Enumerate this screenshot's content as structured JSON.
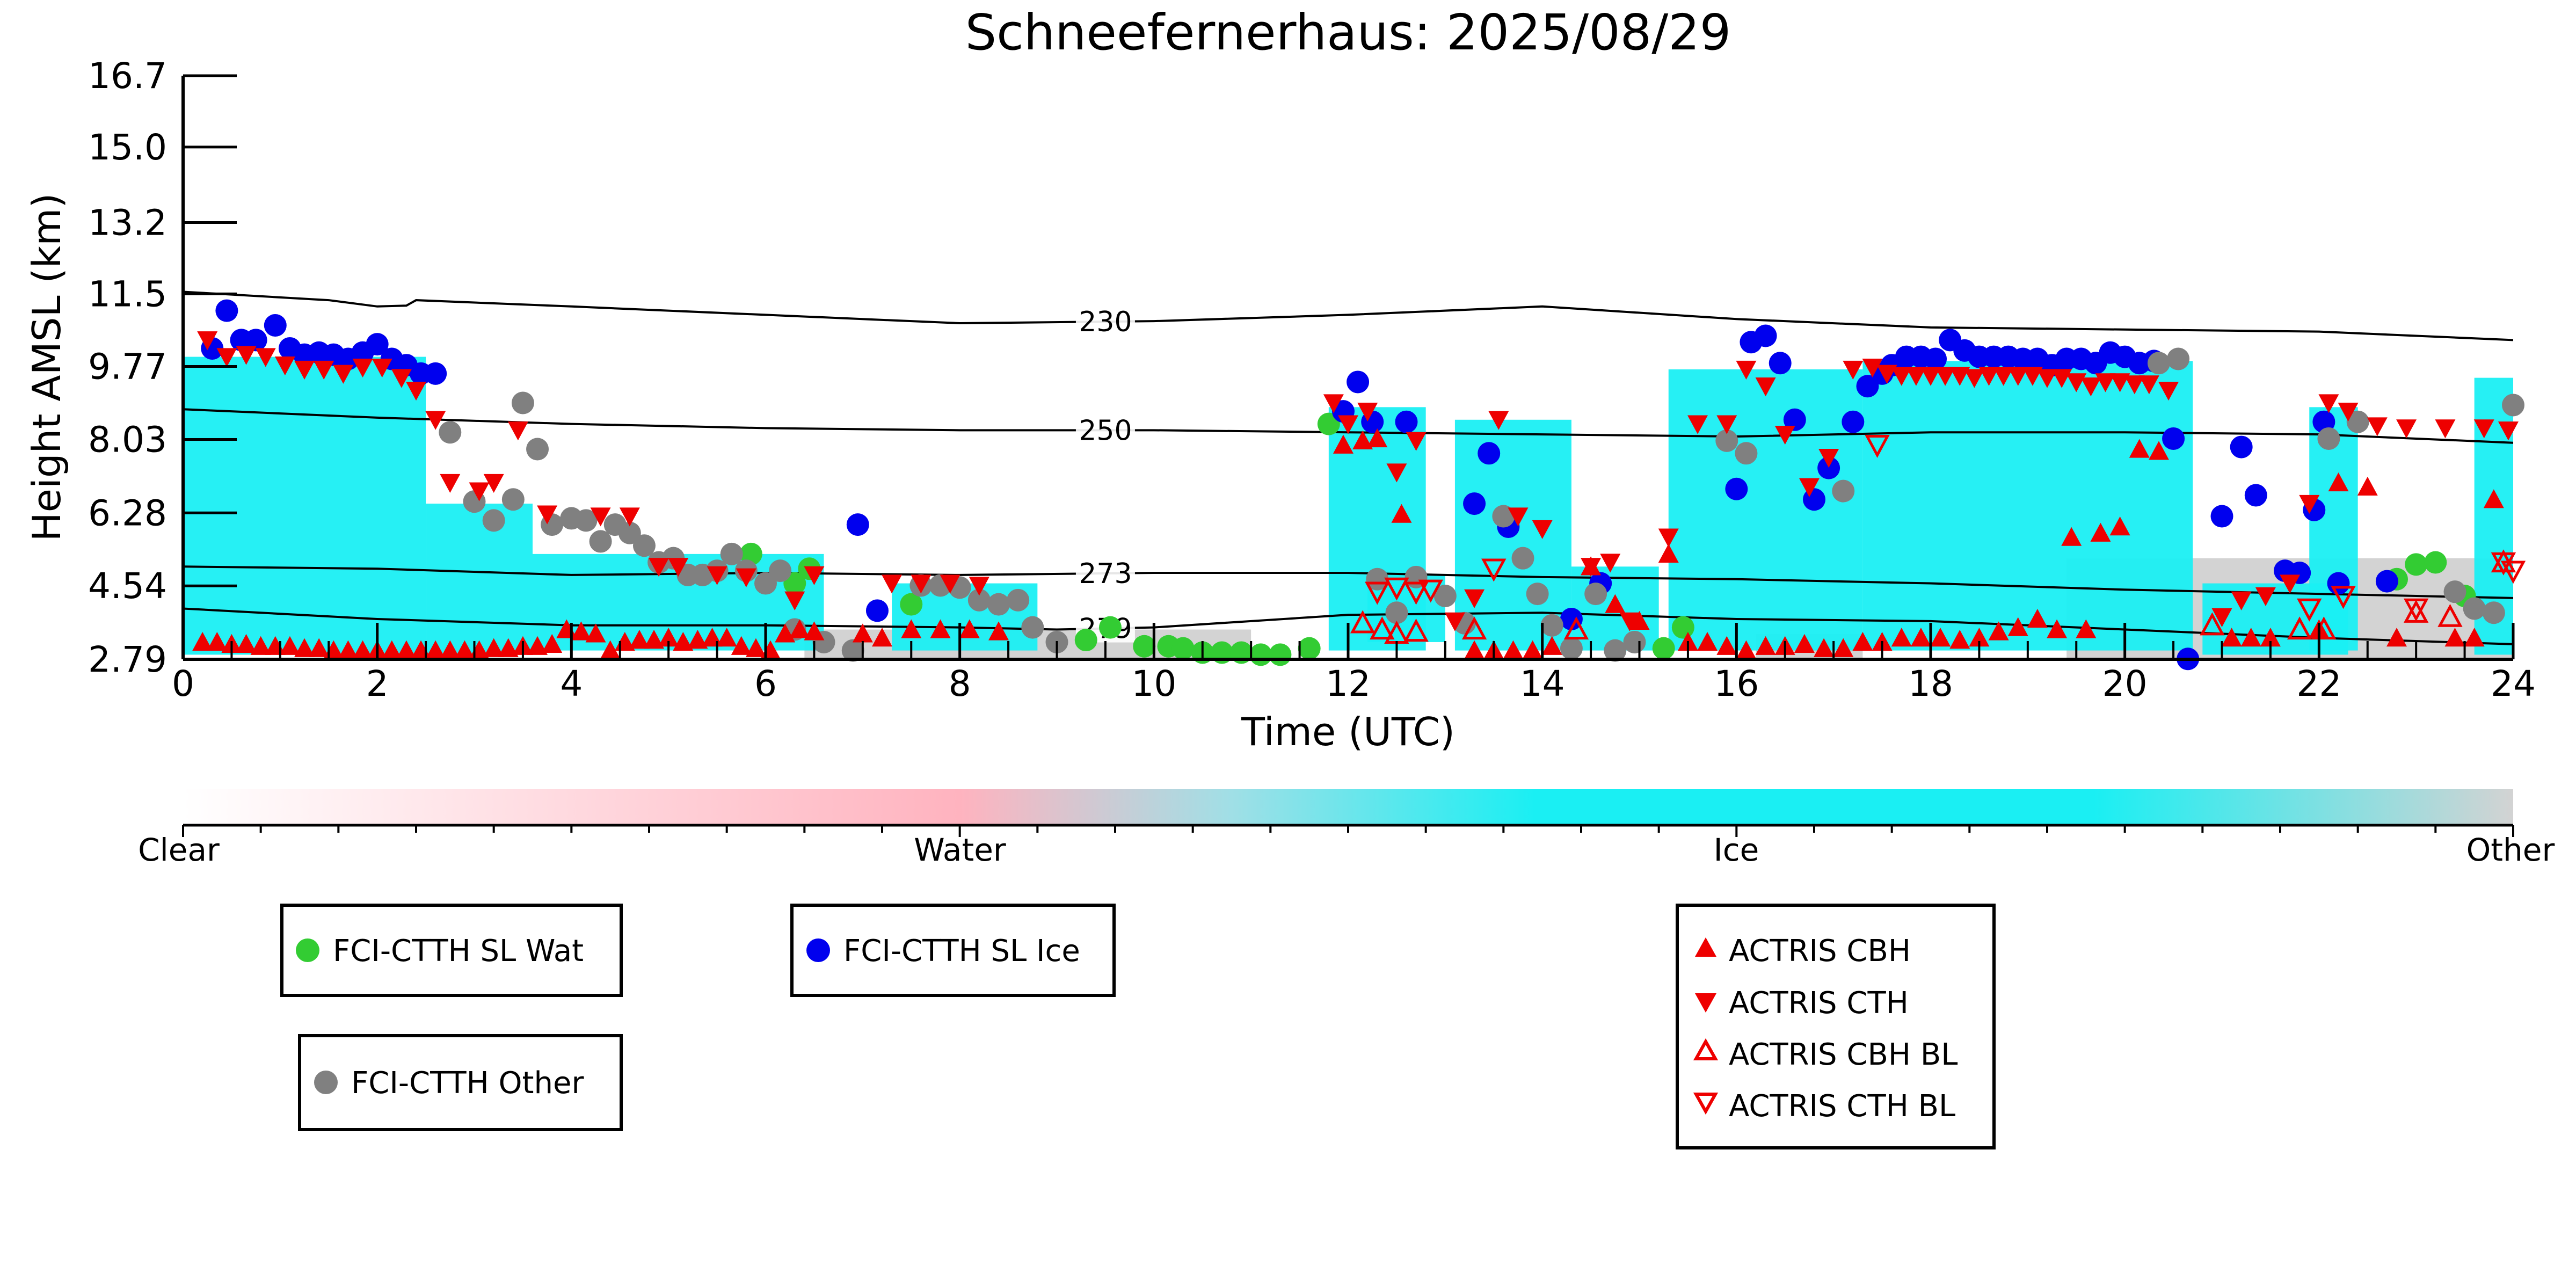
{
  "chart_data": {
    "type": "scatter",
    "title": "Schneefernerhaus: 2025/08/29",
    "xlabel": "Time (UTC)",
    "ylabel": "Height AMSL (km)",
    "xlim": [
      0,
      24
    ],
    "ylim": [
      2.79,
      16.7
    ],
    "x_ticks": [
      "0",
      "2",
      "4",
      "6",
      "8",
      "10",
      "12",
      "14",
      "16",
      "18",
      "20",
      "22",
      "24"
    ],
    "y_ticks": [
      "2.79",
      "4.54",
      "6.28",
      "8.03",
      "9.77",
      "11.5",
      "13.2",
      "15.0",
      "16.7"
    ],
    "background_field": {
      "description_classes": [
        "Clear",
        "Water",
        "Ice",
        "Other"
      ],
      "ice_segments": [
        {
          "x0": 0.0,
          "x1": 2.5,
          "base": 2.9,
          "top": 10.0
        },
        {
          "x0": 2.5,
          "x1": 3.6,
          "base": 2.9,
          "top": 6.5
        },
        {
          "x0": 3.6,
          "x1": 6.6,
          "base": 3.0,
          "top": 5.3
        },
        {
          "x0": 7.3,
          "x1": 8.8,
          "base": 3.0,
          "top": 4.6
        },
        {
          "x0": 11.8,
          "x1": 12.8,
          "base": 3.0,
          "top": 8.8
        },
        {
          "x0": 12.2,
          "x1": 13.0,
          "base": 3.2,
          "top": 4.8
        },
        {
          "x0": 13.1,
          "x1": 14.3,
          "base": 3.0,
          "top": 8.5
        },
        {
          "x0": 14.3,
          "x1": 15.2,
          "base": 3.0,
          "top": 5.0
        },
        {
          "x0": 15.3,
          "x1": 17.3,
          "base": 3.0,
          "top": 9.7
        },
        {
          "x0": 17.3,
          "x1": 20.7,
          "base": 3.0,
          "top": 9.9
        },
        {
          "x0": 20.8,
          "x1": 22.3,
          "base": 2.9,
          "top": 4.6
        },
        {
          "x0": 21.9,
          "x1": 22.4,
          "base": 3.0,
          "top": 8.8
        },
        {
          "x0": 23.6,
          "x1": 24.0,
          "base": 2.9,
          "top": 9.5
        }
      ],
      "other_segments": [
        {
          "x0": 6.4,
          "x1": 11.0,
          "base": 2.79,
          "top": 3.5
        },
        {
          "x0": 19.4,
          "x1": 24.0,
          "base": 2.79,
          "top": 5.2
        },
        {
          "x0": 16.2,
          "x1": 17.3,
          "base": 2.79,
          "top": 3.4
        }
      ]
    },
    "contours": [
      {
        "label": "230",
        "label_x": 9.5,
        "x": [
          0,
          1.5,
          2.0,
          2.3,
          2.4,
          4,
          6,
          8,
          10,
          12,
          14,
          16,
          18,
          20,
          22,
          24
        ],
        "y": [
          11.55,
          11.35,
          11.2,
          11.22,
          11.35,
          11.2,
          11.0,
          10.8,
          10.85,
          11.0,
          11.2,
          10.9,
          10.7,
          10.65,
          10.6,
          10.4
        ]
      },
      {
        "label": "250",
        "label_x": 9.5,
        "x": [
          0,
          2,
          4,
          6,
          8,
          10,
          12,
          14,
          16,
          18,
          20,
          22,
          24
        ],
        "y": [
          8.75,
          8.55,
          8.4,
          8.3,
          8.25,
          8.25,
          8.2,
          8.15,
          8.1,
          8.2,
          8.2,
          8.15,
          7.95
        ]
      },
      {
        "label": "273",
        "label_x": 9.5,
        "x": [
          0,
          2,
          4,
          6,
          8,
          10,
          12,
          14,
          16,
          18,
          20,
          22,
          24
        ],
        "y": [
          5.0,
          4.95,
          4.8,
          4.85,
          4.8,
          4.85,
          4.85,
          4.75,
          4.7,
          4.6,
          4.45,
          4.35,
          4.25
        ]
      },
      {
        "label": "279",
        "label_x": 9.5,
        "x": [
          0,
          2,
          4,
          6,
          8,
          9,
          10,
          12,
          14,
          16,
          18,
          20,
          22,
          24
        ],
        "y": [
          4.0,
          3.75,
          3.6,
          3.6,
          3.55,
          3.5,
          3.55,
          3.85,
          3.9,
          3.75,
          3.7,
          3.5,
          3.3,
          3.15
        ]
      }
    ],
    "series": [
      {
        "name": "FCI-CTTH SL Wat",
        "color": "#33cc33",
        "marker": "circle",
        "x": [
          5.85,
          6.3,
          6.45,
          7.5,
          9.3,
          9.55,
          9.9,
          10.15,
          10.3,
          10.5,
          10.7,
          10.9,
          11.1,
          11.3,
          11.6,
          11.8,
          15.25,
          15.45,
          22.8,
          23.0,
          23.2,
          23.5
        ],
        "y": [
          5.3,
          4.6,
          4.95,
          4.1,
          3.25,
          3.55,
          3.1,
          3.1,
          3.05,
          2.95,
          2.95,
          2.95,
          2.9,
          2.9,
          3.05,
          8.4,
          3.05,
          3.55,
          4.7,
          5.05,
          5.1,
          4.3
        ]
      },
      {
        "name": "FCI-CTTH SL Ice",
        "color": "#0000ee",
        "marker": "circle",
        "x": [
          0.3,
          0.45,
          0.6,
          0.75,
          0.95,
          1.1,
          1.25,
          1.4,
          1.55,
          1.7,
          1.85,
          2.0,
          2.15,
          2.3,
          2.45,
          2.6,
          6.95,
          7.15,
          11.95,
          12.1,
          12.25,
          12.6,
          13.3,
          13.45,
          13.65,
          14.3,
          14.6,
          16.0,
          16.15,
          16.3,
          16.45,
          16.6,
          16.8,
          16.95,
          17.2,
          17.35,
          17.5,
          17.6,
          17.75,
          17.9,
          18.05,
          18.2,
          18.35,
          18.5,
          18.65,
          18.8,
          18.95,
          19.1,
          19.25,
          19.4,
          19.55,
          19.7,
          19.85,
          20.0,
          20.15,
          20.3,
          20.5,
          20.65,
          21.0,
          21.2,
          21.35,
          21.65,
          21.8,
          21.95,
          22.05,
          22.2,
          22.7
        ],
        "y": [
          10.2,
          11.1,
          10.4,
          10.4,
          10.75,
          10.2,
          10.05,
          10.1,
          10.05,
          9.95,
          10.1,
          10.3,
          9.95,
          9.8,
          9.6,
          9.6,
          6.0,
          3.95,
          8.7,
          9.4,
          8.45,
          8.45,
          6.5,
          7.7,
          5.95,
          3.75,
          4.6,
          6.85,
          10.35,
          10.5,
          9.85,
          8.5,
          6.6,
          7.35,
          8.45,
          9.3,
          9.6,
          9.8,
          10.0,
          10.0,
          9.95,
          10.4,
          10.15,
          10.0,
          10.0,
          10.0,
          9.95,
          9.95,
          9.8,
          9.95,
          9.95,
          9.85,
          10.1,
          10.0,
          9.85,
          9.9,
          8.05,
          2.8,
          6.2,
          7.85,
          6.7,
          4.9,
          4.85,
          6.35,
          8.45,
          4.6,
          4.65
        ]
      },
      {
        "name": "FCI-CTTH Other",
        "color": "#808080",
        "marker": "circle",
        "x": [
          2.75,
          3.0,
          3.2,
          3.4,
          3.5,
          3.65,
          3.8,
          4.0,
          4.15,
          4.3,
          4.45,
          4.6,
          4.75,
          4.9,
          5.05,
          5.2,
          5.35,
          5.5,
          5.65,
          5.8,
          6.0,
          6.15,
          6.3,
          6.6,
          6.9,
          7.6,
          7.8,
          8.0,
          8.2,
          8.4,
          8.6,
          8.75,
          9.0,
          12.3,
          12.5,
          12.7,
          13.0,
          13.2,
          13.6,
          13.8,
          13.95,
          14.1,
          14.3,
          14.55,
          14.75,
          14.95,
          15.9,
          16.1,
          17.1,
          20.35,
          20.55,
          22.1,
          22.4,
          23.4,
          23.6,
          23.8,
          24.0
        ],
        "y": [
          8.2,
          6.55,
          6.1,
          6.6,
          8.9,
          7.8,
          6.0,
          6.15,
          6.1,
          5.6,
          6.0,
          5.8,
          5.5,
          5.1,
          5.2,
          4.8,
          4.8,
          4.9,
          5.3,
          4.9,
          4.6,
          4.9,
          3.5,
          3.2,
          3.0,
          4.55,
          4.55,
          4.5,
          4.2,
          4.1,
          4.2,
          3.55,
          3.2,
          4.7,
          3.9,
          4.75,
          4.3,
          3.65,
          6.2,
          5.2,
          4.35,
          3.6,
          3.05,
          4.35,
          3.0,
          3.2,
          8.0,
          7.7,
          6.8,
          9.85,
          9.95,
          8.05,
          8.45,
          4.4,
          4.0,
          3.9,
          8.85
        ]
      },
      {
        "name": "ACTRIS CBH",
        "color": "#ee0000",
        "marker": "triangle-up",
        "hollow": false,
        "x": [
          0.2,
          0.35,
          0.5,
          0.65,
          0.8,
          0.95,
          1.1,
          1.25,
          1.4,
          1.55,
          1.7,
          1.85,
          2.0,
          2.15,
          2.3,
          2.45,
          2.6,
          2.75,
          2.9,
          3.05,
          3.2,
          3.35,
          3.5,
          3.65,
          3.8,
          3.95,
          4.1,
          4.25,
          4.4,
          4.55,
          4.7,
          4.85,
          5.0,
          5.15,
          5.3,
          5.45,
          5.6,
          5.75,
          5.9,
          6.05,
          6.2,
          6.35,
          6.5,
          7.0,
          7.2,
          7.5,
          7.8,
          8.1,
          8.4,
          11.95,
          12.15,
          12.3,
          12.55,
          13.3,
          13.5,
          13.7,
          13.9,
          14.1,
          14.5,
          14.75,
          15.0,
          15.3,
          15.5,
          15.7,
          15.9,
          16.1,
          16.3,
          16.5,
          16.7,
          16.9,
          17.1,
          17.3,
          17.5,
          17.7,
          17.9,
          18.1,
          18.3,
          18.5,
          18.7,
          18.9,
          19.1,
          19.3,
          19.45,
          19.6,
          19.75,
          19.95,
          20.15,
          20.35,
          21.1,
          21.3,
          21.5,
          22.0,
          22.2,
          22.5,
          22.8,
          23.4,
          23.6,
          23.8
        ],
        "y": [
          3.2,
          3.2,
          3.15,
          3.15,
          3.1,
          3.1,
          3.1,
          3.05,
          3.05,
          3.0,
          3.0,
          3.0,
          3.0,
          3.0,
          3.0,
          3.0,
          3.0,
          3.0,
          3.0,
          3.0,
          3.05,
          3.05,
          3.1,
          3.1,
          3.15,
          3.5,
          3.45,
          3.4,
          3.0,
          3.2,
          3.25,
          3.25,
          3.3,
          3.2,
          3.25,
          3.3,
          3.3,
          3.1,
          3.05,
          3.0,
          3.4,
          3.5,
          3.45,
          3.4,
          3.3,
          3.5,
          3.5,
          3.5,
          3.45,
          7.9,
          8.0,
          8.05,
          6.25,
          3.0,
          3.0,
          3.0,
          3.0,
          3.1,
          5.0,
          4.1,
          3.7,
          5.3,
          3.2,
          3.2,
          3.1,
          3.0,
          3.1,
          3.1,
          3.15,
          3.05,
          3.05,
          3.2,
          3.2,
          3.3,
          3.3,
          3.3,
          3.25,
          3.3,
          3.45,
          3.55,
          3.75,
          3.5,
          5.7,
          3.5,
          5.8,
          5.95,
          7.8,
          7.75,
          3.3,
          3.3,
          3.3,
          3.5,
          7.0,
          6.9,
          3.3,
          3.3,
          3.3,
          6.6
        ]
      },
      {
        "name": "ACTRIS CTH",
        "color": "#ee0000",
        "marker": "triangle-down",
        "hollow": false,
        "x": [
          0.25,
          0.45,
          0.65,
          0.85,
          1.05,
          1.25,
          1.45,
          1.65,
          1.85,
          2.05,
          2.25,
          2.4,
          2.6,
          2.75,
          3.05,
          3.2,
          3.45,
          3.75,
          4.3,
          4.6,
          4.9,
          5.1,
          5.5,
          5.8,
          6.3,
          6.5,
          7.3,
          7.6,
          7.9,
          8.2,
          11.85,
          12.0,
          12.2,
          12.5,
          12.7,
          13.1,
          13.3,
          13.55,
          13.75,
          14.0,
          14.5,
          14.7,
          14.9,
          15.3,
          15.6,
          15.9,
          16.1,
          16.3,
          16.5,
          16.75,
          16.95,
          17.2,
          17.4,
          17.55,
          17.7,
          17.85,
          18.0,
          18.15,
          18.3,
          18.45,
          18.6,
          18.75,
          18.9,
          19.05,
          19.2,
          19.35,
          19.5,
          19.65,
          19.8,
          19.95,
          20.1,
          20.25,
          20.45,
          21.0,
          21.2,
          21.45,
          21.7,
          21.9,
          22.1,
          22.3,
          22.6,
          22.9,
          23.3,
          23.7,
          23.95
        ],
        "y": [
          10.4,
          10.0,
          10.05,
          10.0,
          9.8,
          9.7,
          9.7,
          9.6,
          9.75,
          9.75,
          9.5,
          9.2,
          8.5,
          7.0,
          6.8,
          7.0,
          8.25,
          6.25,
          6.2,
          6.2,
          5.0,
          5.0,
          4.8,
          4.75,
          4.2,
          4.8,
          4.6,
          4.6,
          4.6,
          4.55,
          8.9,
          8.4,
          8.7,
          7.25,
          8.0,
          3.7,
          4.25,
          8.5,
          6.2,
          5.9,
          5.0,
          5.1,
          3.7,
          5.7,
          8.4,
          8.4,
          9.7,
          9.3,
          8.15,
          6.9,
          7.6,
          9.7,
          9.75,
          9.6,
          9.55,
          9.55,
          9.55,
          9.55,
          9.55,
          9.5,
          9.55,
          9.55,
          9.55,
          9.55,
          9.5,
          9.5,
          9.4,
          9.3,
          9.4,
          9.4,
          9.35,
          9.35,
          9.2,
          3.8,
          4.2,
          4.3,
          4.6,
          6.5,
          8.9,
          8.7,
          8.35,
          8.3,
          8.3,
          8.3,
          8.25
        ]
      },
      {
        "name": "ACTRIS CBH BL",
        "color": "#ee0000",
        "marker": "triangle-up",
        "hollow": true,
        "x": [
          12.15,
          12.35,
          12.5,
          12.7,
          13.3,
          14.35,
          20.9,
          21.8,
          22.05,
          23.0,
          23.35,
          23.9
        ],
        "y": [
          3.65,
          3.5,
          3.4,
          3.45,
          3.5,
          3.5,
          3.6,
          3.5,
          3.5,
          3.9,
          3.8,
          5.1
        ]
      },
      {
        "name": "ACTRIS CTH BL",
        "color": "#ee0000",
        "marker": "triangle-down",
        "hollow": true,
        "x": [
          12.3,
          12.5,
          12.7,
          12.85,
          13.5,
          17.45,
          21.9,
          22.25,
          23.0,
          23.9,
          24.0
        ],
        "y": [
          4.4,
          4.5,
          4.4,
          4.45,
          4.95,
          7.9,
          4.0,
          4.3,
          4.0,
          5.1,
          4.9
        ]
      }
    ],
    "colorbar": {
      "labels": [
        "Clear",
        "Water",
        "Ice",
        "Other"
      ],
      "colors": [
        "#ffffff",
        "#ffb3bf",
        "#1aeff3",
        "#d3d3d3"
      ]
    }
  },
  "legend": {
    "wat": "FCI-CTTH SL Wat",
    "ice": "FCI-CTTH SL Ice",
    "other": "FCI-CTTH Other",
    "cbh": "ACTRIS CBH",
    "cth": "ACTRIS CTH",
    "cbh_bl": "ACTRIS CBH BL",
    "cth_bl": "ACTRIS CTH BL"
  },
  "colors": {
    "water_marker": "#33cc33",
    "ice_marker": "#0000ee",
    "other_marker": "#808080",
    "actris": "#ee0000",
    "ice_field": "#1aeff3",
    "other_field": "#d3d3d3"
  }
}
